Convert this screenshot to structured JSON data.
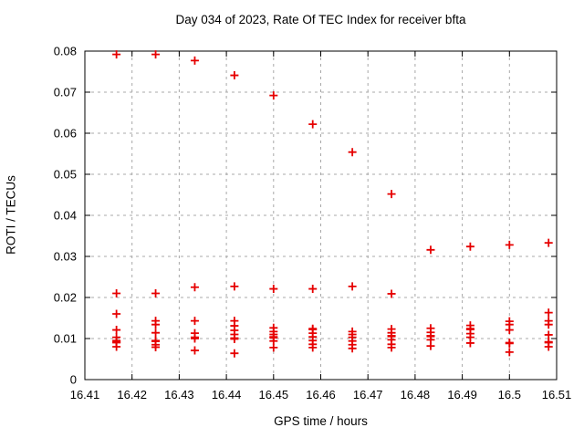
{
  "title": "Day 034 of 2023, Rate Of TEC Index for receiver bfta",
  "colors": {
    "background": "#ffffff",
    "marker": "#e60000",
    "grid": "#a8a8a8",
    "axis": "#000000"
  },
  "chart_data": {
    "type": "scatter",
    "title": "Day 034 of 2023, Rate Of TEC Index for receiver bfta",
    "xlabel": "GPS time / hours",
    "ylabel": "ROTI / TECUs",
    "xlim": [
      16.41,
      16.51
    ],
    "ylim": [
      0,
      0.08
    ],
    "grid": true,
    "legend": false,
    "marker": "plus",
    "x_ticks": {
      "values": [
        16.41,
        16.42,
        16.43,
        16.44,
        16.45,
        16.46,
        16.47,
        16.48,
        16.49,
        16.5,
        16.51
      ],
      "labels": [
        "16.41",
        "16.42",
        "16.43",
        "16.44",
        "16.45",
        "16.46",
        "16.47",
        "16.48",
        "16.49",
        "16.5",
        "16.51"
      ]
    },
    "y_ticks": {
      "values": [
        0,
        0.01,
        0.02,
        0.03,
        0.04,
        0.05,
        0.06,
        0.07,
        0.08
      ],
      "labels": [
        "0",
        "0.01",
        "0.02",
        "0.03",
        "0.04",
        "0.05",
        "0.06",
        "0.07",
        "0.08"
      ]
    },
    "points": [
      [
        16.4167,
        0.0792
      ],
      [
        16.4167,
        0.021
      ],
      [
        16.4167,
        0.016
      ],
      [
        16.4167,
        0.0121
      ],
      [
        16.4167,
        0.0103
      ],
      [
        16.4167,
        0.0095
      ],
      [
        16.4167,
        0.0092
      ],
      [
        16.4167,
        0.009
      ],
      [
        16.4167,
        0.008
      ],
      [
        16.425,
        0.0792
      ],
      [
        16.425,
        0.021
      ],
      [
        16.425,
        0.0143
      ],
      [
        16.425,
        0.0134
      ],
      [
        16.425,
        0.0114
      ],
      [
        16.425,
        0.0095
      ],
      [
        16.425,
        0.0093
      ],
      [
        16.425,
        0.0085
      ],
      [
        16.425,
        0.0079
      ],
      [
        16.4333,
        0.0777
      ],
      [
        16.4333,
        0.0225
      ],
      [
        16.4333,
        0.0143
      ],
      [
        16.4333,
        0.0113
      ],
      [
        16.4333,
        0.0103
      ],
      [
        16.4333,
        0.01
      ],
      [
        16.4333,
        0.0071
      ],
      [
        16.4417,
        0.0741
      ],
      [
        16.4417,
        0.0227
      ],
      [
        16.4417,
        0.0143
      ],
      [
        16.4417,
        0.0131
      ],
      [
        16.4417,
        0.012
      ],
      [
        16.4417,
        0.011
      ],
      [
        16.4417,
        0.0101
      ],
      [
        16.4417,
        0.0099
      ],
      [
        16.4417,
        0.0064
      ],
      [
        16.45,
        0.0692
      ],
      [
        16.45,
        0.0221
      ],
      [
        16.45,
        0.0126
      ],
      [
        16.45,
        0.0117
      ],
      [
        16.45,
        0.011
      ],
      [
        16.45,
        0.0104
      ],
      [
        16.45,
        0.0102
      ],
      [
        16.45,
        0.0094
      ],
      [
        16.45,
        0.0078
      ],
      [
        16.4583,
        0.0622
      ],
      [
        16.4583,
        0.0221
      ],
      [
        16.4583,
        0.0124
      ],
      [
        16.4583,
        0.0122
      ],
      [
        16.4583,
        0.0113
      ],
      [
        16.4583,
        0.0104
      ],
      [
        16.4583,
        0.0095
      ],
      [
        16.4583,
        0.0086
      ],
      [
        16.4583,
        0.0078
      ],
      [
        16.4667,
        0.0554
      ],
      [
        16.4667,
        0.0227
      ],
      [
        16.4667,
        0.0117
      ],
      [
        16.4667,
        0.011
      ],
      [
        16.4667,
        0.0103
      ],
      [
        16.4667,
        0.0094
      ],
      [
        16.4667,
        0.0085
      ],
      [
        16.4667,
        0.0076
      ],
      [
        16.475,
        0.0452
      ],
      [
        16.475,
        0.0209
      ],
      [
        16.475,
        0.0123
      ],
      [
        16.475,
        0.0114
      ],
      [
        16.475,
        0.0107
      ],
      [
        16.475,
        0.0105
      ],
      [
        16.475,
        0.0097
      ],
      [
        16.475,
        0.0086
      ],
      [
        16.475,
        0.0078
      ],
      [
        16.4833,
        0.0316
      ],
      [
        16.4833,
        0.0125
      ],
      [
        16.4833,
        0.0115
      ],
      [
        16.4833,
        0.0107
      ],
      [
        16.4833,
        0.0105
      ],
      [
        16.4833,
        0.0097
      ],
      [
        16.4833,
        0.0082
      ],
      [
        16.4917,
        0.0324
      ],
      [
        16.4917,
        0.0132
      ],
      [
        16.4917,
        0.0124
      ],
      [
        16.4917,
        0.0122
      ],
      [
        16.4917,
        0.0112
      ],
      [
        16.4917,
        0.0103
      ],
      [
        16.4917,
        0.0089
      ],
      [
        16.5,
        0.0328
      ],
      [
        16.5,
        0.0142
      ],
      [
        16.5,
        0.0134
      ],
      [
        16.5,
        0.0121
      ],
      [
        16.5,
        0.009
      ],
      [
        16.5,
        0.0088
      ],
      [
        16.5,
        0.0067
      ],
      [
        16.5083,
        0.0333
      ],
      [
        16.5083,
        0.0163
      ],
      [
        16.5083,
        0.0143
      ],
      [
        16.5083,
        0.0134
      ],
      [
        16.5083,
        0.0109
      ],
      [
        16.5083,
        0.0092
      ],
      [
        16.5083,
        0.009
      ],
      [
        16.5083,
        0.008
      ]
    ]
  }
}
